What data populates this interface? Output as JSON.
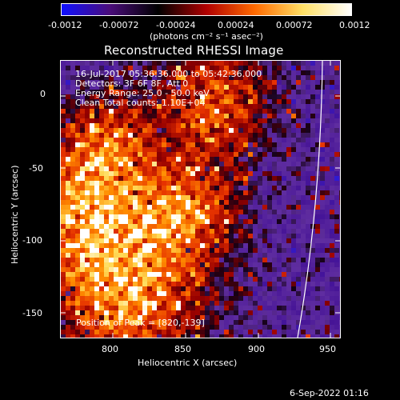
{
  "colorbar": {
    "ticks": [
      "-0.0012",
      "-0.00072",
      "-0.00024",
      "0.00024",
      "0.00072",
      "0.0012"
    ],
    "units": "(photons cm⁻² s⁻¹ asec⁻²)",
    "colors": [
      "#1010ff",
      "#4a0d7a",
      "#000000",
      "#b00000",
      "#ff6a00",
      "#ffe066",
      "#ffffff"
    ]
  },
  "title": "Reconstructed RHESSI Image",
  "info": {
    "line1": "16-Jul-2017 05:36:36.000 to 05:42:36.000",
    "line2": "Detectors: 3F 6F 8F, Att 0",
    "line3": "Energy Range: 25.0 - 50.0 keV",
    "line4": "Clean     Total counts: 1.10E+04"
  },
  "peak_text": "Position of Peak = [820,-139]",
  "axes": {
    "xlabel": "Heliocentric X (arcsec)",
    "ylabel": "Heliocentric Y (arcsec)",
    "xticks": [
      "800",
      "850",
      "900",
      "950"
    ],
    "yticks": [
      "0",
      "-50",
      "-100",
      "-150"
    ],
    "xlim": [
      766,
      960
    ],
    "ylim": [
      -168,
      25
    ]
  },
  "footer": "6-Sep-2022 01:16"
}
